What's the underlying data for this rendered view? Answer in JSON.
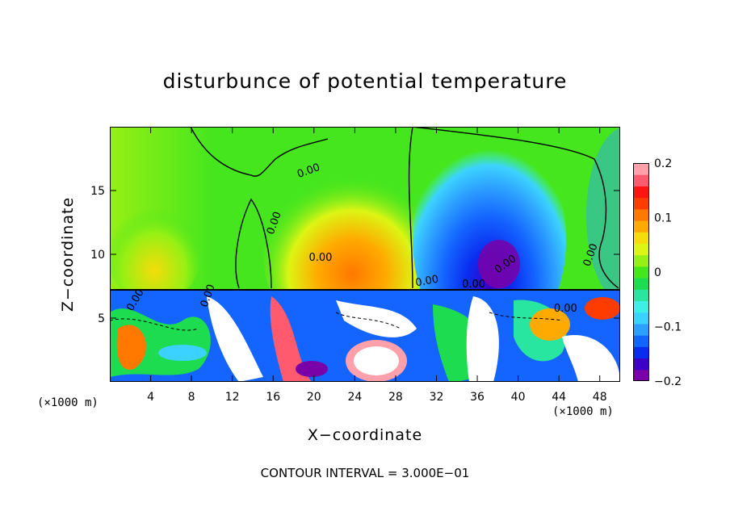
{
  "chart_data": {
    "type": "heatmap",
    "title": "disturbunce of potential temperature",
    "xlabel": "X−coordinate",
    "ylabel": "Z−coordinate",
    "x_unit_left": "(×1000 m)",
    "x_unit_right": "(×1000 m)",
    "xlim": [
      0,
      50
    ],
    "ylim": [
      0,
      20
    ],
    "x_ticks": [
      4,
      8,
      12,
      16,
      20,
      24,
      28,
      32,
      36,
      40,
      44,
      48
    ],
    "y_ticks": [
      5,
      10,
      15
    ],
    "note": "CONTOUR INTERVAL = 3.000E−01",
    "contour_labels": [
      "0.00",
      "0.00",
      "0.00",
      "0.00",
      "0.00",
      "0.00",
      "0.00",
      "0.00",
      "0.00",
      "0.00"
    ],
    "colorbar": {
      "range": [
        -0.2,
        0.2
      ],
      "tick_values": [
        0.2,
        0.1,
        0,
        -0.1,
        -0.2
      ],
      "tick_labels": [
        "0.2",
        "0.1",
        "0",
        "−0.1",
        "−0.2"
      ],
      "colors": [
        "#7a00a8",
        "#3c00c8",
        "#0a2cf0",
        "#1464ff",
        "#2da0ff",
        "#3cd2ff",
        "#3cf0e6",
        "#28e6a0",
        "#1edc50",
        "#46e61e",
        "#96f014",
        "#dcf514",
        "#f5dc0a",
        "#ffaa00",
        "#ff7800",
        "#ff3c00",
        "#ff1414",
        "#ff5a6e",
        "#ffa0aa"
      ]
    },
    "regions": [
      {
        "name": "upper-background",
        "x": [
          0,
          50
        ],
        "z": [
          7.2,
          20
        ],
        "value": 0.02
      },
      {
        "name": "warm-plume-left",
        "x": [
          2,
          8
        ],
        "z": [
          7.2,
          14
        ],
        "value": 0.08
      },
      {
        "name": "warm-plume-center",
        "x": [
          18,
          30
        ],
        "z": [
          7.2,
          15
        ],
        "value": 0.12
      },
      {
        "name": "cold-plume-right",
        "x": [
          30,
          43
        ],
        "z": [
          7.2,
          19
        ],
        "value": -0.12
      },
      {
        "name": "cold-core",
        "x": [
          35,
          40
        ],
        "z": [
          7.5,
          12
        ],
        "value": -0.2
      },
      {
        "name": "lower-turbulent-layer",
        "x": [
          0,
          50
        ],
        "z": [
          0,
          7.2
        ],
        "value": "mixed"
      }
    ]
  }
}
